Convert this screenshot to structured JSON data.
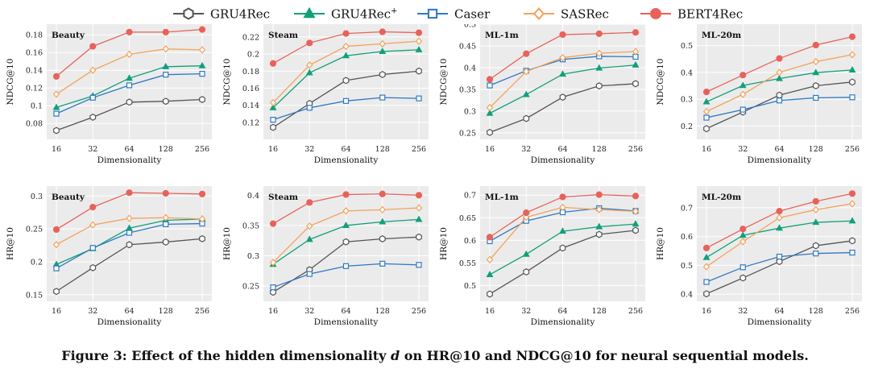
{
  "legend": [
    {
      "name": "GRU4Rec",
      "suffix": "",
      "color": "#555555",
      "marker": "hexagon"
    },
    {
      "name": "GRU4Rec",
      "suffix": "+",
      "color": "#11a07a",
      "marker": "triangle"
    },
    {
      "name": "Caser",
      "suffix": "",
      "color": "#2f78c2",
      "marker": "square"
    },
    {
      "name": "SASRec",
      "suffix": "",
      "color": "#f2a25c",
      "marker": "diamond"
    },
    {
      "name": "BERT4Rec",
      "suffix": "",
      "color": "#e8625a",
      "marker": "circle"
    }
  ],
  "caption": {
    "before": "Figure 3: Effect of the hidden dimensionality ",
    "var": "d",
    "after": " on HR@10 and NDCG@10 for neural sequential models."
  },
  "chart_data": [
    {
      "type": "line",
      "title": "Beauty",
      "xlabel": "Dimensionality",
      "ylabel": "NDCG@10",
      "categories": [
        "16",
        "32",
        "64",
        "128",
        "256"
      ],
      "ylim": [
        0.062,
        0.192
      ],
      "yticks": [
        0.08,
        0.1,
        0.12,
        0.14,
        0.16,
        0.18
      ],
      "yticklabels": [
        "0.08",
        "0.1",
        "0.12",
        "0.14",
        "0.16",
        "0.18"
      ],
      "series": [
        {
          "name": "GRU4Rec",
          "values": [
            0.072,
            0.087,
            0.104,
            0.105,
            0.107
          ]
        },
        {
          "name": "GRU4Rec+",
          "values": [
            0.098,
            0.111,
            0.131,
            0.144,
            0.145
          ]
        },
        {
          "name": "Caser",
          "values": [
            0.091,
            0.109,
            0.123,
            0.135,
            0.136
          ]
        },
        {
          "name": "SASRec",
          "values": [
            0.113,
            0.14,
            0.158,
            0.164,
            0.163
          ]
        },
        {
          "name": "BERT4Rec",
          "values": [
            0.133,
            0.167,
            0.183,
            0.183,
            0.186
          ]
        }
      ]
    },
    {
      "type": "line",
      "title": "Steam",
      "xlabel": "Dimensionality",
      "ylabel": "NDCG@10",
      "categories": [
        "16",
        "32",
        "64",
        "128",
        "256"
      ],
      "ylim": [
        0.1,
        0.235
      ],
      "yticks": [
        0.12,
        0.14,
        0.16,
        0.18,
        0.2,
        0.22
      ],
      "yticklabels": [
        "0.12",
        "0.14",
        "0.16",
        "0.18",
        "0.2",
        "0.22"
      ],
      "series": [
        {
          "name": "GRU4Rec",
          "values": [
            0.114,
            0.142,
            0.169,
            0.176,
            0.18
          ]
        },
        {
          "name": "GRU4Rec+",
          "values": [
            0.137,
            0.178,
            0.198,
            0.203,
            0.205
          ]
        },
        {
          "name": "Caser",
          "values": [
            0.123,
            0.137,
            0.145,
            0.149,
            0.148
          ]
        },
        {
          "name": "SASRec",
          "values": [
            0.143,
            0.187,
            0.209,
            0.212,
            0.215
          ]
        },
        {
          "name": "BERT4Rec",
          "values": [
            0.189,
            0.213,
            0.224,
            0.226,
            0.225
          ]
        }
      ]
    },
    {
      "type": "line",
      "title": "ML-1m",
      "xlabel": "Dimensionality",
      "ylabel": "NDCG@10",
      "categories": [
        "16",
        "32",
        "64",
        "128",
        "256"
      ],
      "ylim": [
        0.235,
        0.5
      ],
      "yticks": [
        0.25,
        0.3,
        0.35,
        0.4,
        0.45,
        0.5
      ],
      "yticklabels": [
        "0.25",
        "0.3",
        "0.35",
        "0.4",
        "0.45",
        "0.5"
      ],
      "series": [
        {
          "name": "GRU4Rec",
          "values": [
            0.251,
            0.283,
            0.332,
            0.358,
            0.363
          ]
        },
        {
          "name": "GRU4Rec+",
          "values": [
            0.295,
            0.338,
            0.385,
            0.399,
            0.406
          ]
        },
        {
          "name": "Caser",
          "values": [
            0.359,
            0.393,
            0.419,
            0.426,
            0.425
          ]
        },
        {
          "name": "SASRec",
          "values": [
            0.308,
            0.391,
            0.423,
            0.433,
            0.437
          ]
        },
        {
          "name": "BERT4Rec",
          "values": [
            0.373,
            0.432,
            0.476,
            0.478,
            0.481
          ]
        }
      ]
    },
    {
      "type": "line",
      "title": "ML-20m",
      "xlabel": "Dimensionality",
      "ylabel": "NDCG@10",
      "categories": [
        "16",
        "32",
        "64",
        "128",
        "256"
      ],
      "ylim": [
        0.15,
        0.58
      ],
      "yticks": [
        0.2,
        0.3,
        0.4,
        0.5
      ],
      "yticklabels": [
        "0.2",
        "0.3",
        "0.4",
        "0.5"
      ],
      "series": [
        {
          "name": "GRU4Rec",
          "values": [
            0.19,
            0.252,
            0.315,
            0.35,
            0.364
          ]
        },
        {
          "name": "GRU4Rec+",
          "values": [
            0.29,
            0.351,
            0.377,
            0.399,
            0.409
          ]
        },
        {
          "name": "Caser",
          "values": [
            0.231,
            0.261,
            0.295,
            0.305,
            0.307
          ]
        },
        {
          "name": "SASRec",
          "values": [
            0.254,
            0.318,
            0.4,
            0.44,
            0.466
          ]
        },
        {
          "name": "BERT4Rec",
          "values": [
            0.327,
            0.39,
            0.452,
            0.502,
            0.533
          ]
        }
      ]
    },
    {
      "type": "line",
      "title": "Beauty",
      "xlabel": "Dimensionality",
      "ylabel": "HR@10",
      "categories": [
        "16",
        "32",
        "64",
        "128",
        "256"
      ],
      "ylim": [
        0.14,
        0.315
      ],
      "yticks": [
        0.15,
        0.2,
        0.25,
        0.3
      ],
      "yticklabels": [
        "0.15",
        "0.2",
        "0.25",
        "0.3"
      ],
      "series": [
        {
          "name": "GRU4Rec",
          "values": [
            0.155,
            0.191,
            0.226,
            0.23,
            0.235
          ]
        },
        {
          "name": "GRU4Rec+",
          "values": [
            0.196,
            0.22,
            0.251,
            0.263,
            0.265
          ]
        },
        {
          "name": "Caser",
          "values": [
            0.19,
            0.221,
            0.244,
            0.257,
            0.258
          ]
        },
        {
          "name": "SASRec",
          "values": [
            0.226,
            0.256,
            0.266,
            0.267,
            0.265
          ]
        },
        {
          "name": "BERT4Rec",
          "values": [
            0.249,
            0.283,
            0.305,
            0.304,
            0.303
          ]
        }
      ]
    },
    {
      "type": "line",
      "title": "Steam",
      "xlabel": "Dimensionality",
      "ylabel": "HR@10",
      "categories": [
        "16",
        "32",
        "64",
        "128",
        "256"
      ],
      "ylim": [
        0.225,
        0.415
      ],
      "yticks": [
        0.25,
        0.3,
        0.35,
        0.4
      ],
      "yticklabels": [
        "0.25",
        "0.3",
        "0.35",
        "0.4"
      ],
      "series": [
        {
          "name": "GRU4Rec",
          "values": [
            0.24,
            0.277,
            0.323,
            0.328,
            0.331
          ]
        },
        {
          "name": "GRU4Rec+",
          "values": [
            0.286,
            0.327,
            0.35,
            0.356,
            0.36
          ]
        },
        {
          "name": "Caser",
          "values": [
            0.248,
            0.27,
            0.283,
            0.287,
            0.285
          ]
        },
        {
          "name": "SASRec",
          "values": [
            0.289,
            0.349,
            0.374,
            0.376,
            0.379
          ]
        },
        {
          "name": "BERT4Rec",
          "values": [
            0.353,
            0.388,
            0.401,
            0.402,
            0.4
          ]
        }
      ]
    },
    {
      "type": "line",
      "title": "ML-1m",
      "xlabel": "Dimensionality",
      "ylabel": "HR@10",
      "categories": [
        "16",
        "32",
        "64",
        "128",
        "256"
      ],
      "ylim": [
        0.465,
        0.72
      ],
      "yticks": [
        0.5,
        0.55,
        0.6,
        0.65,
        0.7
      ],
      "yticklabels": [
        "0.5",
        "0.55",
        "0.6",
        "0.65",
        "0.7"
      ],
      "series": [
        {
          "name": "GRU4Rec",
          "values": [
            0.481,
            0.53,
            0.583,
            0.613,
            0.622
          ]
        },
        {
          "name": "GRU4Rec+",
          "values": [
            0.524,
            0.569,
            0.62,
            0.63,
            0.636
          ]
        },
        {
          "name": "Caser",
          "values": [
            0.598,
            0.643,
            0.662,
            0.671,
            0.665
          ]
        },
        {
          "name": "SASRec",
          "values": [
            0.557,
            0.651,
            0.673,
            0.668,
            0.664
          ]
        },
        {
          "name": "BERT4Rec",
          "values": [
            0.607,
            0.661,
            0.696,
            0.701,
            0.698
          ]
        }
      ]
    },
    {
      "type": "line",
      "title": "ML-20m",
      "xlabel": "Dimensionality",
      "ylabel": "HR@10",
      "categories": [
        "16",
        "32",
        "64",
        "128",
        "256"
      ],
      "ylim": [
        0.375,
        0.775
      ],
      "yticks": [
        0.4,
        0.5,
        0.6,
        0.7
      ],
      "yticklabels": [
        "0.4",
        "0.5",
        "0.6",
        "0.7"
      ],
      "series": [
        {
          "name": "GRU4Rec",
          "values": [
            0.401,
            0.456,
            0.513,
            0.568,
            0.585
          ]
        },
        {
          "name": "GRU4Rec+",
          "values": [
            0.527,
            0.604,
            0.629,
            0.649,
            0.654
          ]
        },
        {
          "name": "Caser",
          "values": [
            0.442,
            0.493,
            0.53,
            0.541,
            0.544
          ]
        },
        {
          "name": "SASRec",
          "values": [
            0.495,
            0.582,
            0.665,
            0.693,
            0.714
          ]
        },
        {
          "name": "BERT4Rec",
          "values": [
            0.56,
            0.626,
            0.688,
            0.722,
            0.749
          ]
        }
      ]
    }
  ]
}
